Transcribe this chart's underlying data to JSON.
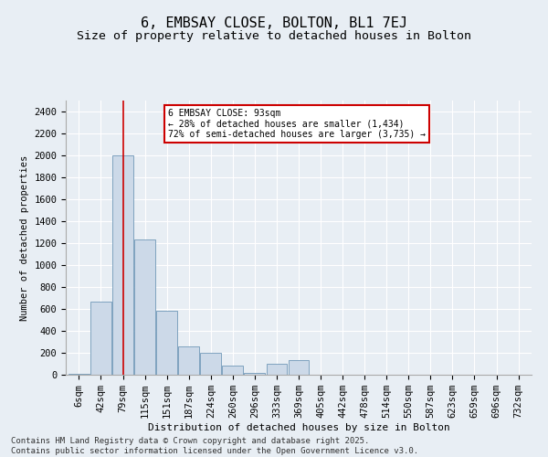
{
  "title": "6, EMBSAY CLOSE, BOLTON, BL1 7EJ",
  "subtitle": "Size of property relative to detached houses in Bolton",
  "xlabel": "Distribution of detached houses by size in Bolton",
  "ylabel": "Number of detached properties",
  "bar_color": "#ccd9e8",
  "bar_edge_color": "#7098b8",
  "vline_color": "#cc0000",
  "vline_x": 2,
  "annotation_text": "6 EMBSAY CLOSE: 93sqm\n← 28% of detached houses are smaller (1,434)\n72% of semi-detached houses are larger (3,735) →",
  "annotation_box_color": "#cc0000",
  "footer_text": "Contains HM Land Registry data © Crown copyright and database right 2025.\nContains public sector information licensed under the Open Government Licence v3.0.",
  "categories": [
    "6sqm",
    "42sqm",
    "79sqm",
    "115sqm",
    "151sqm",
    "187sqm",
    "224sqm",
    "260sqm",
    "296sqm",
    "333sqm",
    "369sqm",
    "405sqm",
    "442sqm",
    "478sqm",
    "514sqm",
    "550sqm",
    "587sqm",
    "623sqm",
    "659sqm",
    "696sqm",
    "732sqm"
  ],
  "values": [
    5,
    670,
    2000,
    1230,
    580,
    260,
    200,
    80,
    20,
    100,
    130,
    0,
    0,
    0,
    0,
    0,
    0,
    0,
    0,
    0,
    0
  ],
  "ylim": [
    0,
    2500
  ],
  "yticks": [
    0,
    200,
    400,
    600,
    800,
    1000,
    1200,
    1400,
    1600,
    1800,
    2000,
    2200,
    2400
  ],
  "background_color": "#e8eef4",
  "plot_bg_color": "#e8eef4",
  "title_fontsize": 11,
  "subtitle_fontsize": 9.5,
  "axis_fontsize": 7.5,
  "footer_fontsize": 6.5
}
